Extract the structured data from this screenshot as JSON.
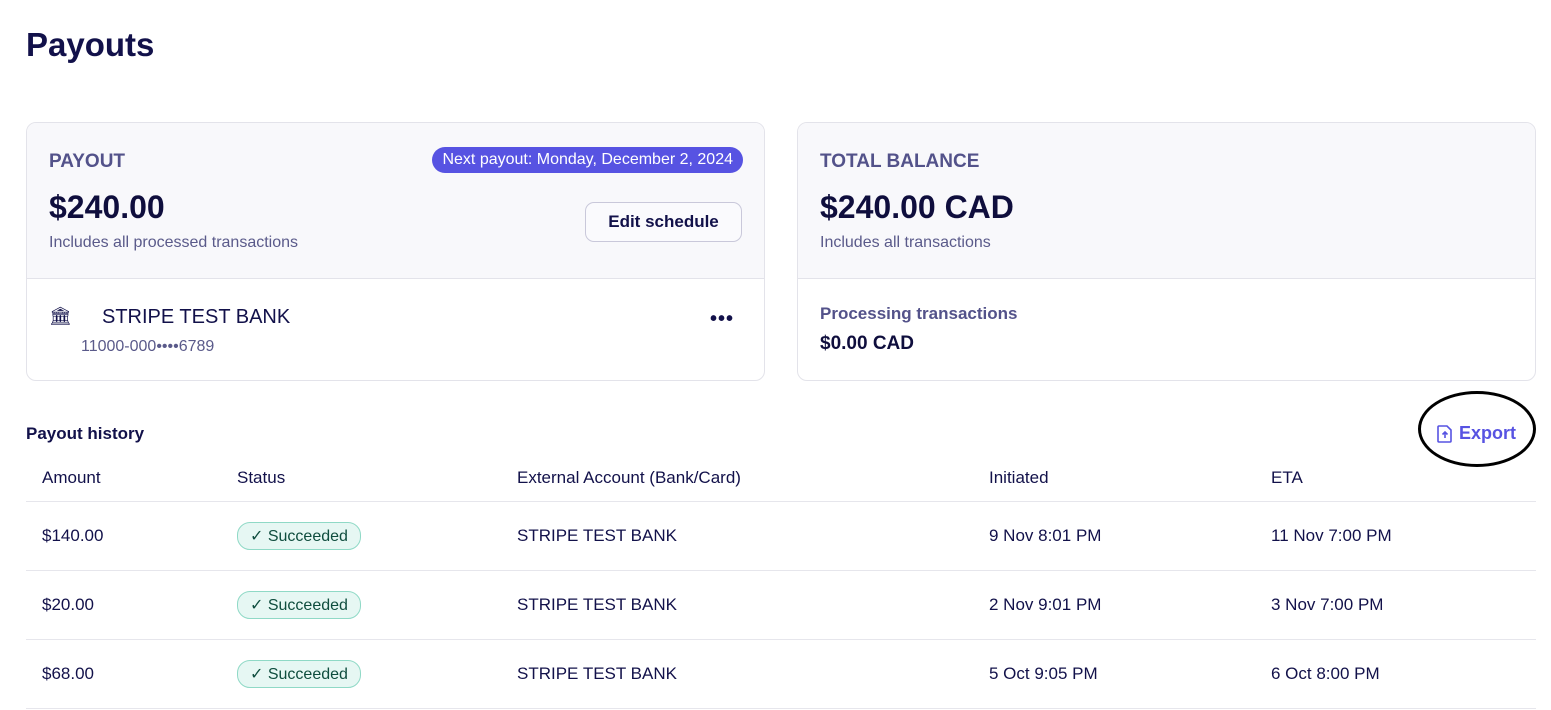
{
  "page": {
    "title": "Payouts"
  },
  "payout_card": {
    "label": "PAYOUT",
    "next_payout": "Next payout: Monday, December 2, 2024",
    "amount": "$240.00",
    "subtitle": "Includes all processed transactions",
    "edit_label": "Edit schedule",
    "bank_name": "STRIPE TEST BANK",
    "account": "11000-000••••6789",
    "more": "•••"
  },
  "balance_card": {
    "label": "TOTAL BALANCE",
    "amount": "$240.00 CAD",
    "subtitle": "Includes all transactions",
    "processing_label": "Processing transactions",
    "processing_amount": "$0.00 CAD"
  },
  "history": {
    "title": "Payout history",
    "export_label": "Export",
    "columns": [
      "Amount",
      "Status",
      "External Account (Bank/Card)",
      "Initiated",
      "ETA"
    ],
    "rows": [
      {
        "amount": "$140.00",
        "status": "Succeeded",
        "account": "STRIPE TEST BANK",
        "initiated": "9 Nov 8:01 PM",
        "eta": "11 Nov 7:00 PM"
      },
      {
        "amount": "$20.00",
        "status": "Succeeded",
        "account": "STRIPE TEST BANK",
        "initiated": "2 Nov 9:01 PM",
        "eta": "3 Nov 7:00 PM"
      },
      {
        "amount": "$68.00",
        "status": "Succeeded",
        "account": "STRIPE TEST BANK",
        "initiated": "5 Oct 9:05 PM",
        "eta": "6 Oct 8:00 PM"
      }
    ]
  },
  "colors": {
    "accent": "#5753e2",
    "success_bg": "#e6f7f3",
    "success_border": "#8fd9c6"
  }
}
